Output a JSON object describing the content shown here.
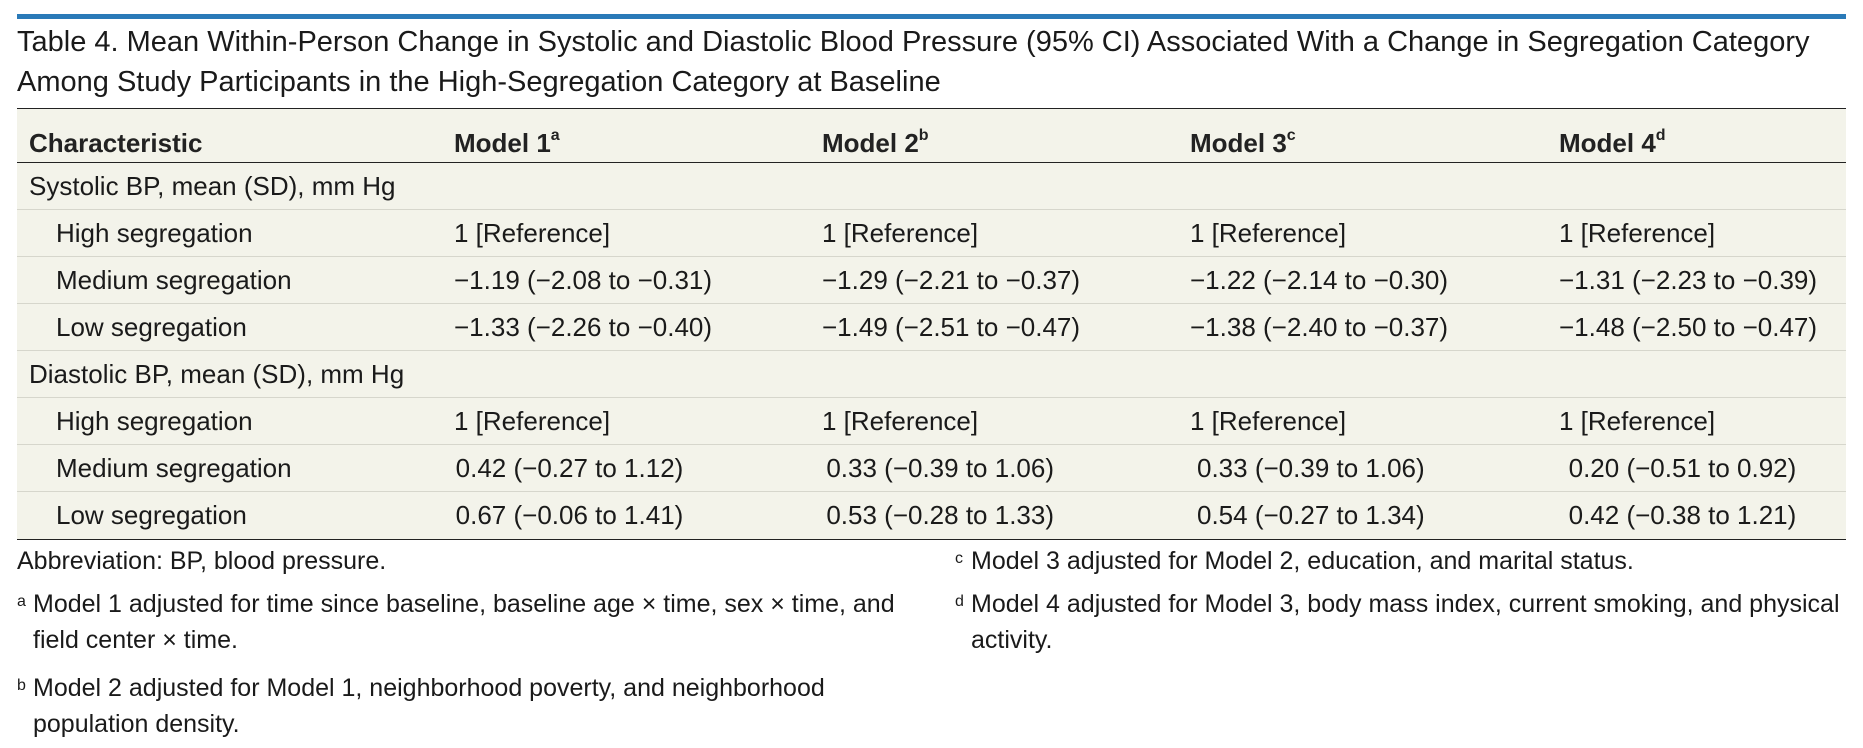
{
  "colors": {
    "accent_bar": "#2a7ab8",
    "table_fill": "#f3f3ea",
    "rule": "#222222"
  },
  "title": "Table 4. Mean Within-Person Change in Systolic and Diastolic Blood Pressure (95% CI) Associated With a Change in Segregation Category Among Study Participants in the High-Segregation Category at Baseline",
  "table": {
    "headers": [
      {
        "label": "Characteristic",
        "sup": ""
      },
      {
        "label": "Model 1",
        "sup": "a"
      },
      {
        "label": "Model 2",
        "sup": "b"
      },
      {
        "label": "Model 3",
        "sup": "c"
      },
      {
        "label": "Model 4",
        "sup": "d"
      }
    ],
    "sections": [
      {
        "label": "Systolic BP, mean (SD), mm Hg",
        "rows": [
          {
            "label": "High segregation",
            "values": [
              "1 [Reference]",
              "1 [Reference]",
              "1 [Reference]",
              "1 [Reference]"
            ]
          },
          {
            "label": "Medium segregation",
            "values": [
              "−1.19 (−2.08 to −0.31)",
              "−1.29 (−2.21 to −0.37)",
              "−1.22 (−2.14 to −0.30)",
              "−1.31 (−2.23 to −0.39)"
            ]
          },
          {
            "label": "Low segregation",
            "values": [
              "−1.33 (−2.26 to −0.40)",
              "−1.49 (−2.51 to −0.47)",
              "−1.38 (−2.40 to −0.37)",
              "−1.48 (−2.50 to −0.47)"
            ]
          }
        ]
      },
      {
        "label": "Diastolic BP, mean (SD), mm Hg",
        "rows": [
          {
            "label": "High segregation",
            "values": [
              "1 [Reference]",
              "1 [Reference]",
              "1 [Reference]",
              "1 [Reference]"
            ]
          },
          {
            "label": "Medium segregation",
            "values": [
              "0.42 (−0.27 to 1.12)",
              "0.33 (−0.39 to 1.06)",
              "0.33 (−0.39 to 1.06)",
              "0.20 (−0.51 to 0.92)"
            ]
          },
          {
            "label": "Low segregation",
            "values": [
              "0.67 (−0.06 to 1.41)",
              "0.53 (−0.28 to 1.33)",
              "0.54 (−0.27 to 1.34)",
              "0.42 (−0.38 to 1.21)"
            ]
          }
        ]
      }
    ]
  },
  "footnotes": {
    "abbreviation": "Abbreviation: BP, blood pressure.",
    "a": {
      "mark": "a",
      "text": "Model 1 adjusted for time since baseline, baseline age × time, sex × time, and field center × time."
    },
    "b": {
      "mark": "b",
      "text": "Model 2 adjusted for Model 1, neighborhood poverty, and neighborhood population density."
    },
    "c": {
      "mark": "c",
      "text": "Model 3 adjusted for Model 2, education, and marital status."
    },
    "d": {
      "mark": "d",
      "text": "Model 4 adjusted for Model 3, body mass index, current smoking, and physical activity."
    }
  }
}
